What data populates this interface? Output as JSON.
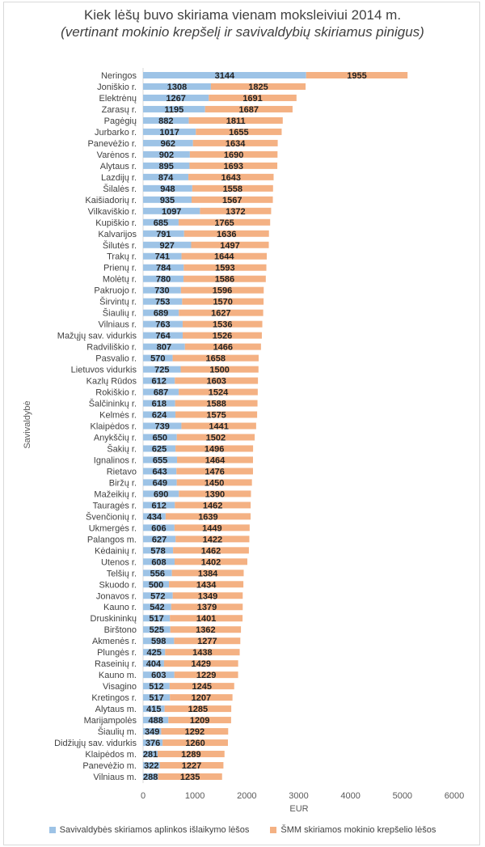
{
  "chart_data": {
    "type": "bar",
    "orientation": "horizontal",
    "stacked": true,
    "title": "Kiek lėšų buvo skiriama vienam moksleiviui 2014 m.",
    "subtitle": "(vertinant mokinio krepšelį ir savivaldybių skiriamus pinigus)",
    "xlabel": "EUR",
    "ylabel": "Savivaldybė",
    "xlim": [
      0,
      6000
    ],
    "xticks": [
      "0",
      "1000",
      "2000",
      "3000",
      "4000",
      "5000",
      "6000"
    ],
    "legend_position": "bottom",
    "grid": false,
    "categories": [
      "Neringos",
      "Joniškio r.",
      "Elektrėnų",
      "Zarasų r.",
      "Pagėgių",
      "Jurbarko r.",
      "Panevėžio r.",
      "Varėnos r.",
      "Alytaus r.",
      "Lazdijų r.",
      "Šilalės r.",
      "Kaišiadorių r.",
      "Vilkaviškio r.",
      "Kupiškio r.",
      "Kalvarijos",
      "Šilutės r.",
      "Trakų r.",
      "Prienų r.",
      "Molėtų r.",
      "Pakruojo r.",
      "Širvintų r.",
      "Šiaulių r.",
      "Vilniaus r.",
      "Mažųjų sav. vidurkis",
      "Radviliškio r.",
      "Pasvalio r.",
      "Lietuvos vidurkis",
      "Kazlų Rūdos",
      "Rokiškio r.",
      "Šalčininkų r.",
      "Kelmės r.",
      "Klaipėdos r.",
      "Anykščių r.",
      "Šakių r.",
      "Ignalinos r.",
      "Rietavo",
      "Biržų r.",
      "Mažeikių r.",
      "Tauragės r.",
      "Švenčionių r.",
      "Ukmergės r.",
      "Palangos m.",
      "Kėdainių r.",
      "Utenos r.",
      "Telšių r.",
      "Skuodo r.",
      "Jonavos r.",
      "Kauno r.",
      "Druskininkų",
      "Birštono",
      "Akmenės r.",
      "Plungės r.",
      "Raseinių r.",
      "Kauno m.",
      "Visagino",
      "Kretingos r.",
      "Alytaus m.",
      "Marijampolės",
      "Šiaulių m.",
      "Didžiųjų sav. vidurkis",
      "Klaipėdos m.",
      "Panevėžio m.",
      "Vilniaus m."
    ],
    "series": [
      {
        "name": "Savivaldybės skiriamos aplinkos išlaikymo lėšos",
        "color": "#9dc3e6",
        "values": [
          3144,
          1308,
          1267,
          1195,
          882,
          1017,
          962,
          902,
          895,
          874,
          948,
          935,
          1097,
          685,
          791,
          927,
          741,
          784,
          780,
          730,
          753,
          689,
          763,
          764,
          807,
          570,
          725,
          612,
          687,
          618,
          624,
          739,
          650,
          625,
          655,
          643,
          649,
          690,
          612,
          434,
          606,
          627,
          578,
          608,
          556,
          500,
          572,
          542,
          517,
          525,
          598,
          425,
          404,
          603,
          512,
          517,
          415,
          488,
          349,
          376,
          281,
          322,
          288
        ]
      },
      {
        "name": "ŠMM skiriamos mokinio krepšelio lėšos",
        "color": "#f4b183",
        "values": [
          1955,
          1825,
          1691,
          1687,
          1811,
          1655,
          1634,
          1690,
          1693,
          1643,
          1558,
          1567,
          1372,
          1765,
          1636,
          1497,
          1644,
          1593,
          1586,
          1596,
          1570,
          1627,
          1536,
          1526,
          1466,
          1658,
          1500,
          1603,
          1524,
          1588,
          1575,
          1441,
          1502,
          1496,
          1464,
          1476,
          1450,
          1390,
          1462,
          1639,
          1449,
          1422,
          1462,
          1402,
          1384,
          1434,
          1349,
          1379,
          1401,
          1362,
          1277,
          1438,
          1429,
          1229,
          1245,
          1207,
          1285,
          1209,
          1292,
          1260,
          1289,
          1227,
          1235
        ]
      }
    ]
  }
}
